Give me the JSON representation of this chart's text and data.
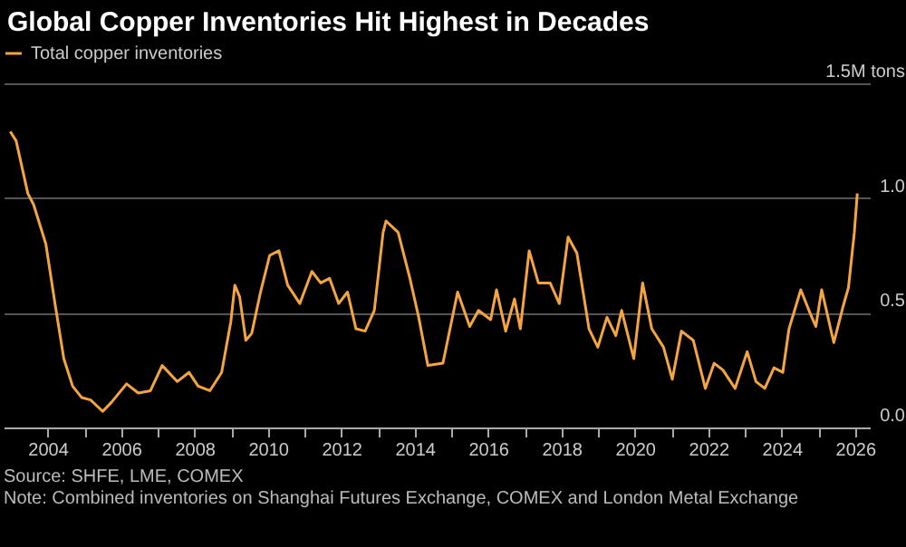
{
  "chart_data": {
    "type": "line",
    "title": "Global Copper Inventories Hit Highest in Decades",
    "x": [
      2002.98,
      2003.14,
      2003.46,
      2003.62,
      2003.95,
      2004.2,
      2004.44,
      2004.68,
      2004.93,
      2005.17,
      2005.5,
      2005.74,
      2006.15,
      2006.47,
      2006.8,
      2007.12,
      2007.53,
      2007.85,
      2008.1,
      2008.42,
      2008.74,
      2008.99,
      2009.1,
      2009.23,
      2009.4,
      2009.56,
      2009.8,
      2010.05,
      2010.3,
      2010.54,
      2010.87,
      2011.2,
      2011.44,
      2011.68,
      2011.93,
      2012.17,
      2012.4,
      2012.65,
      2012.9,
      2013.14,
      2013.22,
      2013.55,
      2013.87,
      2014.11,
      2014.36,
      2014.77,
      2015.17,
      2015.5,
      2015.74,
      2016.07,
      2016.23,
      2016.48,
      2016.72,
      2016.88,
      2017.12,
      2017.37,
      2017.69,
      2017.94,
      2018.18,
      2018.42,
      2018.75,
      2018.99,
      2019.24,
      2019.48,
      2019.64,
      2019.97,
      2020.21,
      2020.46,
      2020.78,
      2021.02,
      2021.27,
      2021.59,
      2021.92,
      2022.16,
      2022.4,
      2022.73,
      2023.06,
      2023.3,
      2023.54,
      2023.79,
      2024.03,
      2024.2,
      2024.52,
      2024.77,
      2024.93,
      2025.09,
      2025.42,
      2025.66,
      2025.82,
      2025.98,
      2026.06
    ],
    "series": [
      {
        "name": "Total copper inventories",
        "color": "#f5a540",
        "values": [
          1.29,
          1.25,
          1.02,
          0.97,
          0.8,
          0.54,
          0.3,
          0.18,
          0.13,
          0.12,
          0.07,
          0.11,
          0.19,
          0.15,
          0.16,
          0.27,
          0.2,
          0.24,
          0.18,
          0.16,
          0.24,
          0.46,
          0.62,
          0.57,
          0.38,
          0.41,
          0.59,
          0.75,
          0.77,
          0.62,
          0.54,
          0.68,
          0.63,
          0.65,
          0.54,
          0.59,
          0.43,
          0.42,
          0.51,
          0.85,
          0.9,
          0.85,
          0.65,
          0.48,
          0.27,
          0.28,
          0.59,
          0.44,
          0.51,
          0.47,
          0.6,
          0.42,
          0.56,
          0.43,
          0.77,
          0.63,
          0.63,
          0.54,
          0.83,
          0.76,
          0.43,
          0.35,
          0.48,
          0.4,
          0.51,
          0.3,
          0.63,
          0.43,
          0.35,
          0.21,
          0.42,
          0.38,
          0.17,
          0.28,
          0.25,
          0.17,
          0.33,
          0.2,
          0.17,
          0.26,
          0.24,
          0.43,
          0.6,
          0.5,
          0.44,
          0.6,
          0.37,
          0.52,
          0.61,
          0.85,
          1.02
        ]
      }
    ],
    "xlim": [
      2002.8,
      2026.4
    ],
    "xticks": [
      2004,
      {
        "value": 2005,
        "label": null
      },
      2006,
      {
        "value": 2007,
        "label": null
      },
      2008,
      {
        "value": 2009,
        "label": null
      },
      2010,
      {
        "value": 2011,
        "label": null
      },
      2012,
      {
        "value": 2013,
        "label": null
      },
      2014,
      {
        "value": 2015,
        "label": null
      },
      2016,
      {
        "value": 2017,
        "label": null
      },
      2018,
      {
        "value": 2019,
        "label": null
      },
      2020,
      {
        "value": 2021,
        "label": null
      },
      2022,
      {
        "value": 2023,
        "label": null
      },
      2024,
      {
        "value": 2025,
        "label": null
      },
      2026
    ],
    "ylim": [
      0,
      1.5
    ],
    "yticks": [
      {
        "value": 0,
        "label": "0.0"
      },
      {
        "value": 0.5,
        "label": "0.5"
      },
      {
        "value": 1,
        "label": "1.0"
      },
      {
        "value": 1.5,
        "label": "1.5M tons"
      }
    ],
    "grid": "y",
    "legend": "top left",
    "annotations": [
      "Source: SHFE, LME, COMEX",
      "Note: Combined inventories on Shanghai Futures Exchange, COMEX and London Metal Exchange"
    ]
  }
}
